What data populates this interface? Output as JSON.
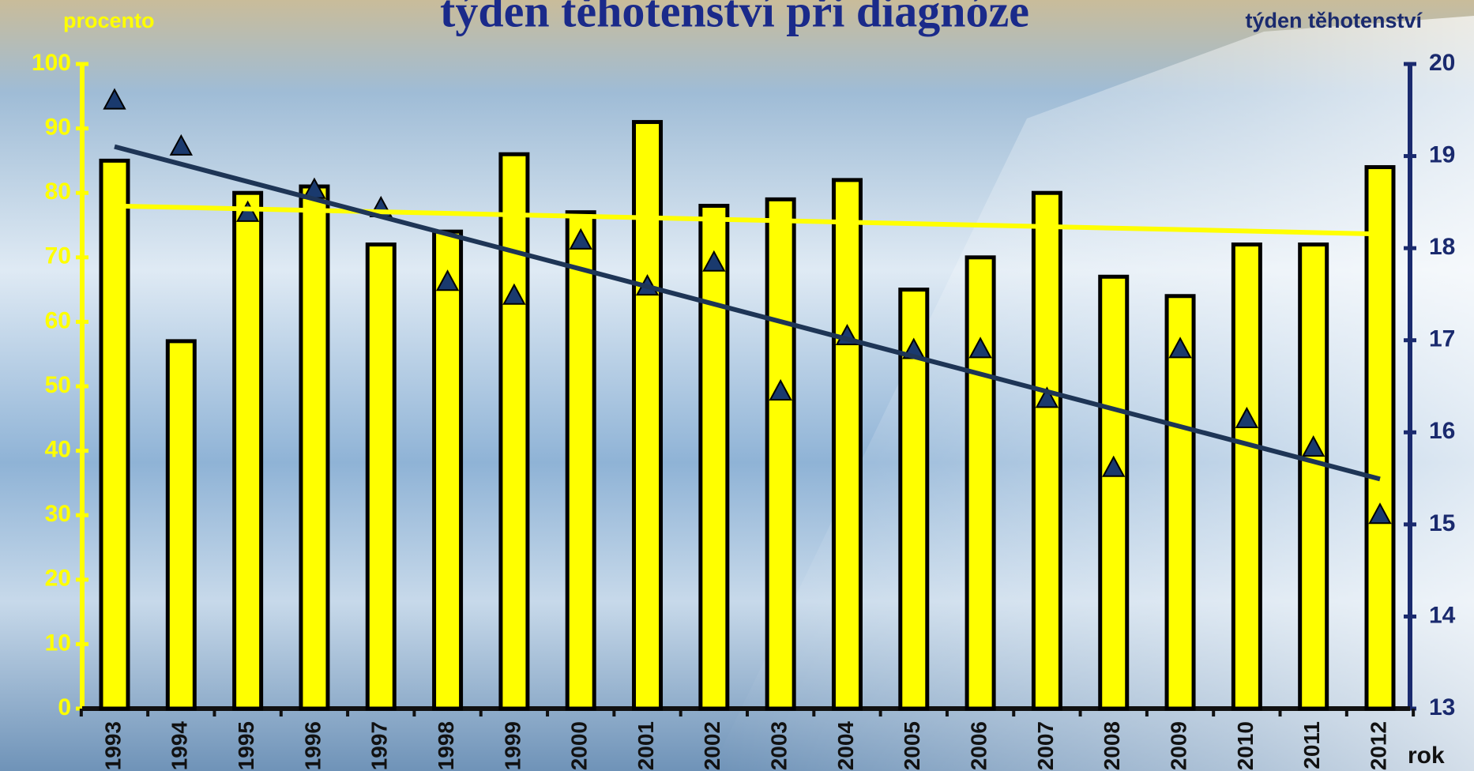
{
  "chart_data": {
    "type": "bar",
    "title": "týden těhotenství při diagnóze",
    "y_label": "procento",
    "y2_label": "týden těhotenství",
    "x_label": "rok",
    "categories": [
      "1993",
      "1994",
      "1995",
      "1996",
      "1997",
      "1998",
      "1999",
      "2000",
      "2001",
      "2002",
      "2003",
      "2004",
      "2005",
      "2006",
      "2007",
      "2008",
      "2009",
      "2010",
      "2011",
      "2012"
    ],
    "series": [
      {
        "type": "bar",
        "color": "#ffff00",
        "values": [
          85,
          57,
          80,
          81,
          72,
          74,
          86,
          77,
          91,
          78,
          79,
          82,
          65,
          70,
          80,
          67,
          64,
          72,
          72,
          84
        ]
      },
      {
        "type": "scatter",
        "axis": "y2",
        "color": "#1a3a6e",
        "values": [
          19.6,
          19.1,
          18.38,
          18.63,
          18.43,
          17.63,
          17.48,
          18.08,
          17.58,
          17.84,
          16.44,
          17.04,
          16.89,
          16.9,
          16.36,
          15.61,
          16.9,
          16.14,
          15.83,
          15.1
        ]
      }
    ],
    "trendline": true,
    "ylim": [
      0,
      100
    ],
    "yticks": [
      0,
      10,
      20,
      30,
      40,
      50,
      60,
      70,
      80,
      90,
      100
    ],
    "y2lim": [
      13,
      20
    ],
    "y2ticks": [
      13,
      14,
      15,
      16,
      17,
      18,
      19,
      20
    ]
  }
}
